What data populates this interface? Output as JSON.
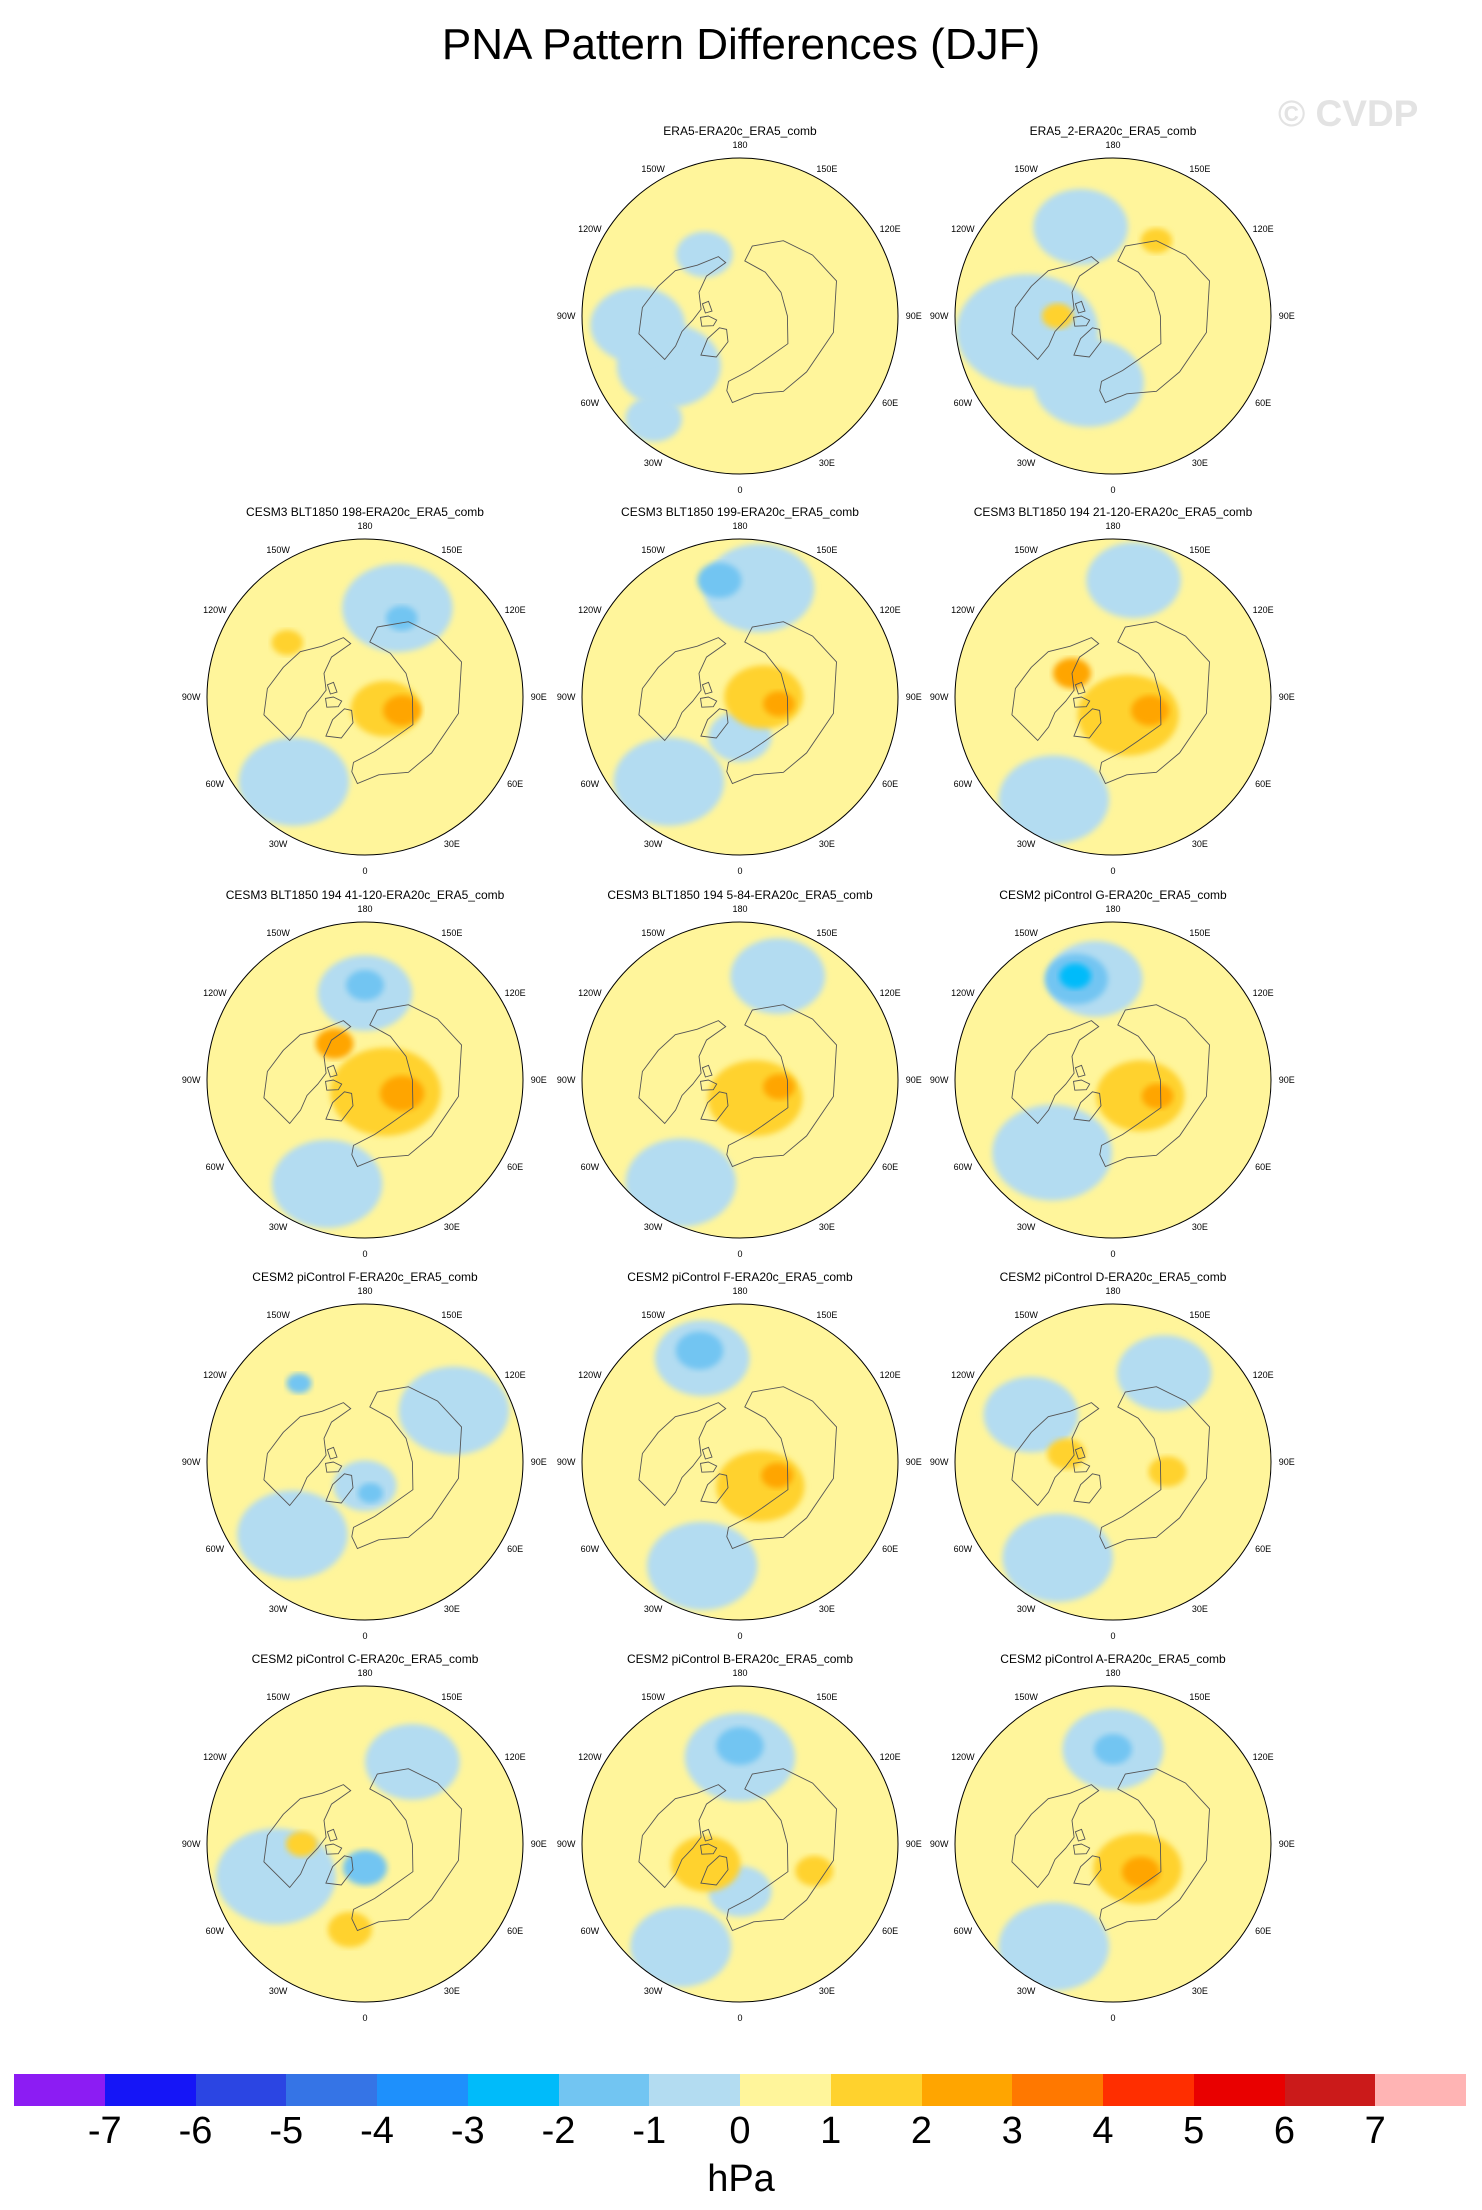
{
  "title": "PNA Pattern Differences (DJF)",
  "watermark": "© CVDP",
  "units": "hPa",
  "colorbar": {
    "colors": [
      "#8c1cf3",
      "#1515f7",
      "#2b45e3",
      "#3574e6",
      "#1e90fc",
      "#00bbfa",
      "#72c5f2",
      "#b3dcf1",
      "#fff59b",
      "#ffd22d",
      "#ffa500",
      "#ff7800",
      "#ff2e00",
      "#e90000",
      "#cb1a1a",
      "#ffb4b4"
    ],
    "tick_labels": [
      "-7",
      "-6",
      "-5",
      "-4",
      "-3",
      "-2",
      "-1",
      "0",
      "1",
      "2",
      "3",
      "4",
      "5",
      "6",
      "7"
    ]
  },
  "map_labels": {
    "top": "180",
    "bottom": "0",
    "upper_left": "150W",
    "upper_right": "150E",
    "mid_upper_left": "120W",
    "mid_upper_right": "120E",
    "left": "90W",
    "right": "90E",
    "mid_lower_left": "60W",
    "mid_lower_right": "60E",
    "lower_left": "30W",
    "lower_right": "30E"
  },
  "panels": [
    {
      "title": "ERA5-ERA20c_ERA5_comb",
      "features": [
        {
          "lon": -55,
          "colat": 0.55,
          "rad": 0.33,
          "v": -1
        },
        {
          "lon": -85,
          "colat": 0.65,
          "rad": 0.3,
          "v": -1
        },
        {
          "lon": -40,
          "colat": 0.85,
          "rad": 0.18,
          "v": -1
        },
        {
          "lon": -150,
          "colat": 0.45,
          "rad": 0.18,
          "v": -1
        }
      ]
    },
    {
      "title": "ERA5_2-ERA20c_ERA5_comb",
      "features": [
        {
          "lon": -80,
          "colat": 0.55,
          "rad": 0.45,
          "v": -1
        },
        {
          "lon": -20,
          "colat": 0.45,
          "rad": 0.35,
          "v": -1
        },
        {
          "lon": -160,
          "colat": 0.6,
          "rad": 0.3,
          "v": -1
        },
        {
          "lon": 150,
          "colat": 0.55,
          "rad": 0.1,
          "v": 2
        },
        {
          "lon": -90,
          "colat": 0.35,
          "rad": 0.1,
          "v": 2
        }
      ]
    },
    {
      "title": "CESM3 BLT1850 198-ERA20c_ERA5_comb",
      "features": [
        {
          "lon": -40,
          "colat": 0.7,
          "rad": 0.35,
          "v": -1
        },
        {
          "lon": 160,
          "colat": 0.6,
          "rad": 0.35,
          "v": -1
        },
        {
          "lon": 60,
          "colat": 0.15,
          "rad": 0.22,
          "v": 2
        },
        {
          "lon": 70,
          "colat": 0.25,
          "rad": 0.12,
          "v": 3
        },
        {
          "lon": 155,
          "colat": 0.55,
          "rad": 0.1,
          "v": -2
        },
        {
          "lon": -125,
          "colat": 0.6,
          "rad": 0.1,
          "v": 2
        }
      ]
    },
    {
      "title": "CESM3 BLT1850 199-ERA20c_ERA5_comb",
      "features": [
        {
          "lon": -40,
          "colat": 0.7,
          "rad": 0.35,
          "v": -1
        },
        {
          "lon": 170,
          "colat": 0.7,
          "rad": 0.35,
          "v": -1
        },
        {
          "lon": -170,
          "colat": 0.75,
          "rad": 0.14,
          "v": -2
        },
        {
          "lon": 0,
          "colat": 0.25,
          "rad": 0.2,
          "v": -1
        },
        {
          "lon": 90,
          "colat": 0.15,
          "rad": 0.25,
          "v": 2
        },
        {
          "lon": 80,
          "colat": 0.25,
          "rad": 0.1,
          "v": 3
        }
      ]
    },
    {
      "title": "CESM3 BLT1850 194 21-120-ERA20c_ERA5_comb",
      "features": [
        {
          "lon": -30,
          "colat": 0.75,
          "rad": 0.35,
          "v": -1
        },
        {
          "lon": 170,
          "colat": 0.75,
          "rad": 0.3,
          "v": -1
        },
        {
          "lon": 40,
          "colat": 0.15,
          "rad": 0.32,
          "v": 2
        },
        {
          "lon": 70,
          "colat": 0.25,
          "rad": 0.12,
          "v": 3
        },
        {
          "lon": -120,
          "colat": 0.3,
          "rad": 0.12,
          "v": 3
        }
      ]
    },
    {
      "title": "CESM3 BLT1850 194 41-120-ERA20c_ERA5_comb",
      "features": [
        {
          "lon": -20,
          "colat": 0.7,
          "rad": 0.35,
          "v": -1
        },
        {
          "lon": 180,
          "colat": 0.55,
          "rad": 0.3,
          "v": -1
        },
        {
          "lon": 180,
          "colat": 0.6,
          "rad": 0.12,
          "v": -2
        },
        {
          "lon": 60,
          "colat": 0.15,
          "rad": 0.35,
          "v": 2
        },
        {
          "lon": 70,
          "colat": 0.25,
          "rad": 0.14,
          "v": 3
        },
        {
          "lon": -140,
          "colat": 0.3,
          "rad": 0.12,
          "v": 3
        }
      ]
    },
    {
      "title": "CESM3 BLT1850 194 5-84-ERA20c_ERA5_comb",
      "features": [
        {
          "lon": -30,
          "colat": 0.75,
          "rad": 0.35,
          "v": -1
        },
        {
          "lon": 160,
          "colat": 0.7,
          "rad": 0.3,
          "v": -1
        },
        {
          "lon": 40,
          "colat": 0.15,
          "rad": 0.3,
          "v": 2
        },
        {
          "lon": 80,
          "colat": 0.25,
          "rad": 0.1,
          "v": 3
        }
      ]
    },
    {
      "title": "CESM2 piControl G-ERA20c_ERA5_comb",
      "features": [
        {
          "lon": -40,
          "colat": 0.6,
          "rad": 0.38,
          "v": -1
        },
        {
          "lon": -170,
          "colat": 0.65,
          "rad": 0.3,
          "v": -1
        },
        {
          "lon": -160,
          "colat": 0.68,
          "rad": 0.2,
          "v": -2
        },
        {
          "lon": -160,
          "colat": 0.7,
          "rad": 0.1,
          "v": -3
        },
        {
          "lon": 60,
          "colat": 0.2,
          "rad": 0.28,
          "v": 2
        },
        {
          "lon": 70,
          "colat": 0.3,
          "rad": 0.1,
          "v": 3
        }
      ]
    },
    {
      "title": "CESM2 piControl F-ERA20c_ERA5_comb",
      "features": [
        {
          "lon": -45,
          "colat": 0.65,
          "rad": 0.35,
          "v": -1
        },
        {
          "lon": 120,
          "colat": 0.65,
          "rad": 0.35,
          "v": -1
        },
        {
          "lon": 0,
          "colat": 0.15,
          "rad": 0.2,
          "v": -1
        },
        {
          "lon": 10,
          "colat": 0.2,
          "rad": 0.08,
          "v": -2
        },
        {
          "lon": -140,
          "colat": 0.65,
          "rad": 0.08,
          "v": -2
        }
      ]
    },
    {
      "title": "CESM2 piControl F-ERA20c_ERA5_comb",
      "features": [
        {
          "lon": -20,
          "colat": 0.7,
          "rad": 0.35,
          "v": -1
        },
        {
          "lon": -160,
          "colat": 0.7,
          "rad": 0.3,
          "v": -1
        },
        {
          "lon": -160,
          "colat": 0.75,
          "rad": 0.15,
          "v": -2
        },
        {
          "lon": 40,
          "colat": 0.2,
          "rad": 0.28,
          "v": 2
        },
        {
          "lon": 70,
          "colat": 0.25,
          "rad": 0.1,
          "v": 3
        }
      ]
    },
    {
      "title": "CESM2 piControl D-ERA20c_ERA5_comb",
      "features": [
        {
          "lon": -30,
          "colat": 0.7,
          "rad": 0.35,
          "v": -1
        },
        {
          "lon": -120,
          "colat": 0.6,
          "rad": 0.3,
          "v": -1
        },
        {
          "lon": 150,
          "colat": 0.65,
          "rad": 0.3,
          "v": -1
        },
        {
          "lon": 80,
          "colat": 0.35,
          "rad": 0.12,
          "v": 2
        },
        {
          "lon": -100,
          "colat": 0.3,
          "rad": 0.12,
          "v": 2
        }
      ]
    },
    {
      "title": "CESM2 piControl C-ERA20c_ERA5_comb",
      "features": [
        {
          "lon": -70,
          "colat": 0.6,
          "rad": 0.38,
          "v": -1
        },
        {
          "lon": 150,
          "colat": 0.6,
          "rad": 0.3,
          "v": -1
        },
        {
          "lon": 0,
          "colat": 0.15,
          "rad": 0.14,
          "v": -2
        },
        {
          "lon": -10,
          "colat": 0.55,
          "rad": 0.14,
          "v": 2
        },
        {
          "lon": -90,
          "colat": 0.4,
          "rad": 0.1,
          "v": 2
        }
      ]
    },
    {
      "title": "CESM2 piControl B-ERA20c_ERA5_comb",
      "features": [
        {
          "lon": -30,
          "colat": 0.75,
          "rad": 0.32,
          "v": -1
        },
        {
          "lon": 180,
          "colat": 0.55,
          "rad": 0.35,
          "v": -1
        },
        {
          "lon": 180,
          "colat": 0.62,
          "rad": 0.15,
          "v": -2
        },
        {
          "lon": 0,
          "colat": 0.3,
          "rad": 0.2,
          "v": -1
        },
        {
          "lon": -60,
          "colat": 0.25,
          "rad": 0.22,
          "v": 2
        },
        {
          "lon": 70,
          "colat": 0.5,
          "rad": 0.12,
          "v": 2
        }
      ]
    },
    {
      "title": "CESM2 piControl A-ERA20c_ERA5_comb",
      "features": [
        {
          "lon": -30,
          "colat": 0.75,
          "rad": 0.35,
          "v": -1
        },
        {
          "lon": 180,
          "colat": 0.6,
          "rad": 0.32,
          "v": -1
        },
        {
          "lon": 180,
          "colat": 0.6,
          "rad": 0.12,
          "v": -2
        },
        {
          "lon": 45,
          "colat": 0.22,
          "rad": 0.28,
          "v": 2
        },
        {
          "lon": 45,
          "colat": 0.25,
          "rad": 0.12,
          "v": 3
        }
      ]
    }
  ]
}
